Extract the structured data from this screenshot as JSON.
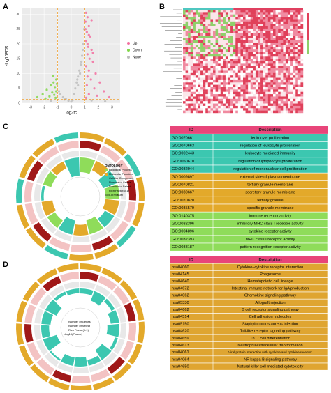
{
  "panels": {
    "a": "A",
    "b": "B",
    "c": "C",
    "d": "D"
  },
  "volcano": {
    "type": "scatter",
    "x_label": "log2fc",
    "y_label": "-log10FDR",
    "xlim": [
      -3.6,
      3.6
    ],
    "ylim": [
      0,
      32
    ],
    "xticks": [
      -3,
      -2,
      -1,
      0,
      1,
      2,
      3
    ],
    "yticks": [
      0,
      5,
      10,
      15,
      20,
      25,
      30
    ],
    "thresholds": {
      "x": [
        -1,
        1
      ],
      "y": 1.3
    },
    "series": [
      {
        "name": "Up",
        "color": "#f36fa0",
        "points": [
          [
            1.1,
            30.5
          ],
          [
            1.2,
            29
          ],
          [
            1.05,
            27.5
          ],
          [
            1.3,
            26
          ],
          [
            1.15,
            24
          ],
          [
            1.4,
            22.5
          ],
          [
            1.1,
            21
          ],
          [
            1.25,
            19
          ],
          [
            1.5,
            18
          ],
          [
            1.2,
            16.5
          ],
          [
            1.35,
            15
          ],
          [
            1.6,
            14
          ],
          [
            1.1,
            12.5
          ],
          [
            1.3,
            11
          ],
          [
            1.8,
            10
          ],
          [
            1.2,
            9
          ],
          [
            1.45,
            8
          ],
          [
            2.1,
            7
          ],
          [
            1.15,
            6
          ],
          [
            1.7,
            5
          ],
          [
            2.4,
            4
          ],
          [
            1.3,
            3
          ],
          [
            1.9,
            2.5
          ],
          [
            2.8,
            2
          ],
          [
            1.1,
            1.8
          ],
          [
            1.5,
            28
          ],
          [
            1.05,
            25
          ],
          [
            1.3,
            23
          ],
          [
            1.2,
            20
          ],
          [
            1.6,
            17
          ]
        ]
      },
      {
        "name": "Down",
        "color": "#82d84a",
        "points": [
          [
            -1.1,
            8
          ],
          [
            -1.3,
            7
          ],
          [
            -1.05,
            6.5
          ],
          [
            -1.5,
            6
          ],
          [
            -1.2,
            5.2
          ],
          [
            -1.8,
            4.5
          ],
          [
            -1.1,
            4
          ],
          [
            -1.4,
            3.6
          ],
          [
            -2.1,
            3
          ],
          [
            -1.25,
            2.8
          ],
          [
            -1.6,
            2.3
          ],
          [
            -2.5,
            2
          ],
          [
            -1.15,
            1.8
          ],
          [
            -1.9,
            1.6
          ],
          [
            -1.35,
            9.2
          ]
        ]
      },
      {
        "name": "None",
        "color": "#bdbdbd",
        "points": [
          [
            0.9,
            20
          ],
          [
            0.8,
            16
          ],
          [
            0.7,
            13
          ],
          [
            0.6,
            11
          ],
          [
            0.5,
            9
          ],
          [
            0.4,
            7
          ],
          [
            0.3,
            5
          ],
          [
            0.2,
            3
          ],
          [
            0.1,
            1
          ],
          [
            0,
            0.5
          ],
          [
            -0.2,
            0.8
          ],
          [
            -0.4,
            1.5
          ],
          [
            -0.6,
            2
          ],
          [
            -0.8,
            3
          ],
          [
            -0.9,
            4
          ],
          [
            0.95,
            25
          ],
          [
            0.85,
            18
          ],
          [
            0.75,
            14
          ],
          [
            0.5,
            6
          ],
          [
            -0.5,
            1.2
          ],
          [
            1.5,
            0.9
          ],
          [
            -1.5,
            0.8
          ],
          [
            2.5,
            0.6
          ],
          [
            0.65,
            10
          ],
          [
            0.45,
            8
          ]
        ]
      }
    ],
    "legend_title": "None"
  },
  "go_legend": {
    "title": "ONTOLOGY",
    "items": [
      "Biological Process",
      "Molecular Function",
      "Cellular Component"
    ],
    "bars": [
      "Number of Genes",
      "Number of Select",
      "Rich Factor(0-1)"
    ],
    "pvalue": "-log10(Pvalue)"
  },
  "kegg_legend": {
    "bars": [
      "Number of Genes",
      "Number of Select",
      "Rich Factor(0-1)"
    ],
    "pvalue": "-log10(Pvalue)"
  },
  "go_table": {
    "header": [
      "ID",
      "Description"
    ],
    "rows": [
      [
        "GO:0070661",
        "leukocyte proliferation"
      ],
      [
        "GO:0070663",
        "regulation of leukocyte proliferation"
      ],
      [
        "GO:0002443",
        "leukocyte mediated immunity"
      ],
      [
        "GO:0050670",
        "regulation of lymphocyte proliferation"
      ],
      [
        "GO:0032944",
        "regulation of mononuclear cell proliferation"
      ],
      [
        "GO:0009897",
        "external side of plasma membrane"
      ],
      [
        "GO:0070821",
        "tertiary granule membrane"
      ],
      [
        "GO:0030667",
        "secretory granule membrane"
      ],
      [
        "GO:0070820",
        "tertiary granule"
      ],
      [
        "GO:0035579",
        "specific granule membrane"
      ],
      [
        "GO:0140375",
        "immune receptor activity"
      ],
      [
        "GO:0032396",
        "inhibitory MHC class I receptor activity"
      ],
      [
        "GO:0004896",
        "cytokine receptor activity"
      ],
      [
        "GO:0032393",
        "MHC class I receptor activity"
      ],
      [
        "GO:0038187",
        "pattern recognition receptor activity"
      ]
    ]
  },
  "kegg_table": {
    "header": [
      "ID",
      "Description"
    ],
    "rows": [
      [
        "hsa04060",
        "Cytokine–cytokine receptor interaction"
      ],
      [
        "hsa04145",
        "Phagosome"
      ],
      [
        "hsa04640",
        "Hematopoietic cell lineage"
      ],
      [
        "hsa04672",
        "Intestinal immune network for IgA production"
      ],
      [
        "hsa04062",
        "Chemokine signaling pathway"
      ],
      [
        "hsa05330",
        "Allograft rejection"
      ],
      [
        "hsa04662",
        "B cell receptor signaling pathway"
      ],
      [
        "hsa04514",
        "Cell adhesion molecules"
      ],
      [
        "hsa05150",
        "Staphylococcus aureus infection"
      ],
      [
        "hsa04620",
        "Toll-like receptor signaling pathway"
      ],
      [
        "hsa04659",
        "Th17 cell differentiation"
      ],
      [
        "hsa04613",
        "Neutrophil extracellular trap formation"
      ],
      [
        "hsa04061",
        "Viral protein interaction with cytokine and cytokine receptor"
      ],
      [
        "hsa04064",
        "NF-kappa B signaling pathway"
      ],
      [
        "hsa04650",
        "Natural killer cell mediated cytotoxicity"
      ]
    ]
  }
}
